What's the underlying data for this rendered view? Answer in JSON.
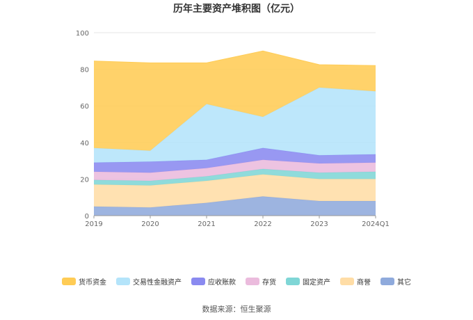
{
  "chart_data": {
    "type": "area",
    "stacked": true,
    "title": "历年主要资产堆积图（亿元）",
    "source_text": "数据来源：恒生聚源",
    "categories": [
      "2019",
      "2020",
      "2021",
      "2022",
      "2023",
      "2024Q1"
    ],
    "y_ticks": [
      "0",
      "20",
      "40",
      "60",
      "80",
      "100"
    ],
    "ylim": [
      0,
      100
    ],
    "grid": true,
    "legend_position": "bottom",
    "series": [
      {
        "name": "其它",
        "color": "#8FAADC",
        "values": [
          5,
          4.5,
          7,
          10.5,
          8,
          8
        ]
      },
      {
        "name": "商誉",
        "color": "#FFDDA6",
        "values": [
          12,
          12,
          12,
          12,
          12,
          12
        ]
      },
      {
        "name": "固定资产",
        "color": "#7FD6D6",
        "values": [
          2.5,
          2.5,
          2.5,
          3,
          3.5,
          4
        ]
      },
      {
        "name": "存货",
        "color": "#EBBBDD",
        "values": [
          4.5,
          4.5,
          4.5,
          5,
          5,
          5
        ]
      },
      {
        "name": "应收账款",
        "color": "#8A8AF0",
        "values": [
          5,
          6,
          4.5,
          6.5,
          4.5,
          4.5
        ]
      },
      {
        "name": "交易性金融资产",
        "color": "#B4E4FA",
        "values": [
          8,
          6,
          30.5,
          17,
          37,
          34.5
        ]
      },
      {
        "name": "货币资金",
        "color": "#FFCC55",
        "values": [
          47.5,
          48,
          22.5,
          36,
          12.5,
          14
        ]
      }
    ]
  }
}
